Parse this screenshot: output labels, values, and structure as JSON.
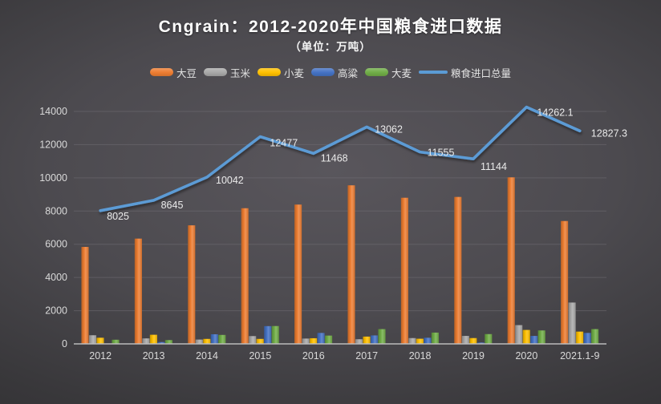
{
  "header": {
    "title": "Cngrain：2012-2020年中国粮食进口数据",
    "subtitle": "（单位：万吨）"
  },
  "chart_data": {
    "type": "bar+line combo",
    "title": "Cngrain：2012-2020年中国粮食进口数据",
    "subtitle": "（单位：万吨）",
    "unit": "万吨",
    "categories": [
      "2012",
      "2013",
      "2014",
      "2015",
      "2016",
      "2017",
      "2018",
      "2019",
      "2020",
      "2021.1-9"
    ],
    "series": [
      {
        "name": "大豆",
        "type": "bar",
        "color": "#ED7D31",
        "values": [
          5840,
          6340,
          7140,
          8170,
          8390,
          9550,
          8800,
          8850,
          10030,
          7400
        ]
      },
      {
        "name": "玉米",
        "type": "bar",
        "color": "#A8A8A8",
        "values": [
          520,
          330,
          260,
          470,
          320,
          280,
          350,
          480,
          1130,
          2490
        ]
      },
      {
        "name": "小麦",
        "type": "bar",
        "color": "#FFC000",
        "values": [
          370,
          550,
          300,
          300,
          340,
          440,
          310,
          350,
          840,
          740
        ]
      },
      {
        "name": "高粱",
        "type": "bar",
        "color": "#4472C4",
        "values": [
          10,
          110,
          580,
          1070,
          660,
          510,
          370,
          80,
          480,
          660
        ]
      },
      {
        "name": "大麦",
        "type": "bar",
        "color": "#70AD47",
        "values": [
          250,
          230,
          540,
          1075,
          500,
          890,
          680,
          590,
          810,
          890
        ]
      },
      {
        "name": "粮食进口总量",
        "type": "line",
        "color": "#5B9BD5",
        "values": [
          8025,
          8645,
          10042,
          12477,
          11468,
          13062,
          11555,
          11144,
          14262.1,
          12827.3
        ],
        "labels": [
          "8025",
          "8645",
          "10042",
          "12477",
          "11468",
          "13062",
          "11555",
          "11144",
          "14262.1",
          "12827.3"
        ],
        "label_offsets": [
          [
            8,
            11
          ],
          [
            9,
            10
          ],
          [
            11,
            8
          ],
          [
            12,
            12
          ],
          [
            9,
            10
          ],
          [
            10,
            7
          ],
          [
            9,
            5
          ],
          [
            9,
            14
          ],
          [
            13,
            11
          ],
          [
            14,
            7
          ]
        ]
      }
    ],
    "ylim": [
      0,
      14000
    ],
    "yticks": [
      0,
      2000,
      4000,
      6000,
      8000,
      10000,
      12000,
      14000
    ],
    "grid": true,
    "legend_position": "top",
    "colors": {
      "background_center": "#59565C",
      "background_edge": "#29282B",
      "grid": "#716E75",
      "axis": "#BBBBBB",
      "tick_text": "#D9D9D9",
      "title_text": "#FFFFFF",
      "data_label_text": "#EAEAEA"
    }
  }
}
